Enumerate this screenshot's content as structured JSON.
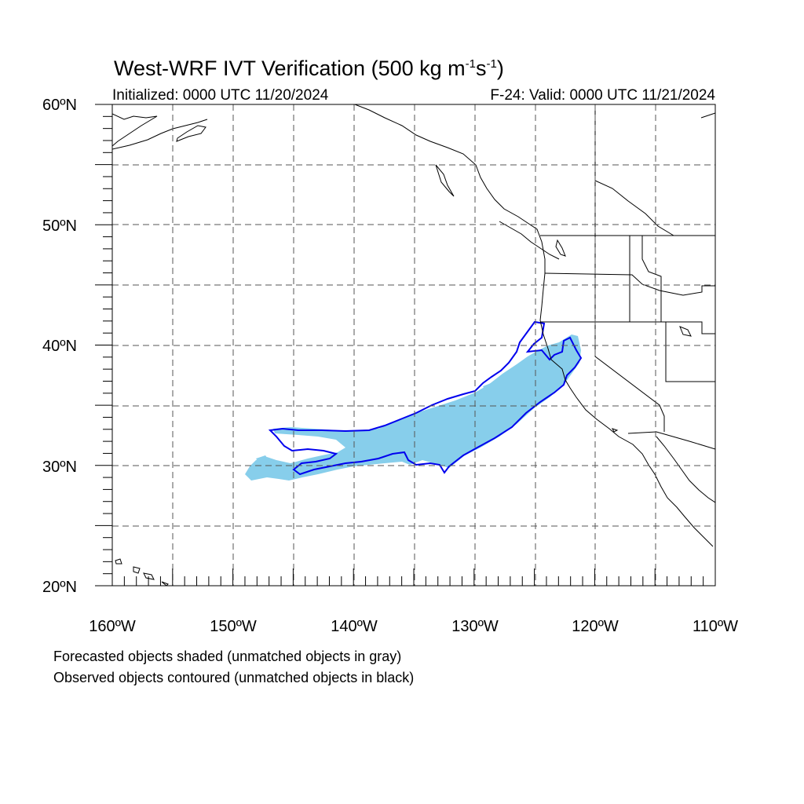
{
  "title_main": "West-WRF IVT Verification (500 kg m",
  "title_sup1": "-1",
  "title_mid": "s",
  "title_sup2": "-1",
  "title_end": ")",
  "initialized": "Initialized: 0000 UTC 11/20/2024",
  "valid": "F-24: Valid: 0000 UTC 11/21/2024",
  "lat_labels": [
    "60ºN",
    "50ºN",
    "40ºN",
    "30ºN",
    "20ºN"
  ],
  "lon_labels": [
    "160ºW",
    "150ºW",
    "140ºW",
    "130ºW",
    "120ºW",
    "110ºW"
  ],
  "caption_1": "Forecasted objects shaded (unmatched objects in gray)",
  "caption_2": "Observed objects contoured (unmatched objects in black)",
  "colors": {
    "forecast_fill": "#87CEEB",
    "observed_contour": "#0000EE",
    "coastline": "#000000",
    "grid": "#555555"
  },
  "map_extent": {
    "lon_min": -160,
    "lon_max": -110,
    "lat_min": 20,
    "lat_max": 60
  }
}
